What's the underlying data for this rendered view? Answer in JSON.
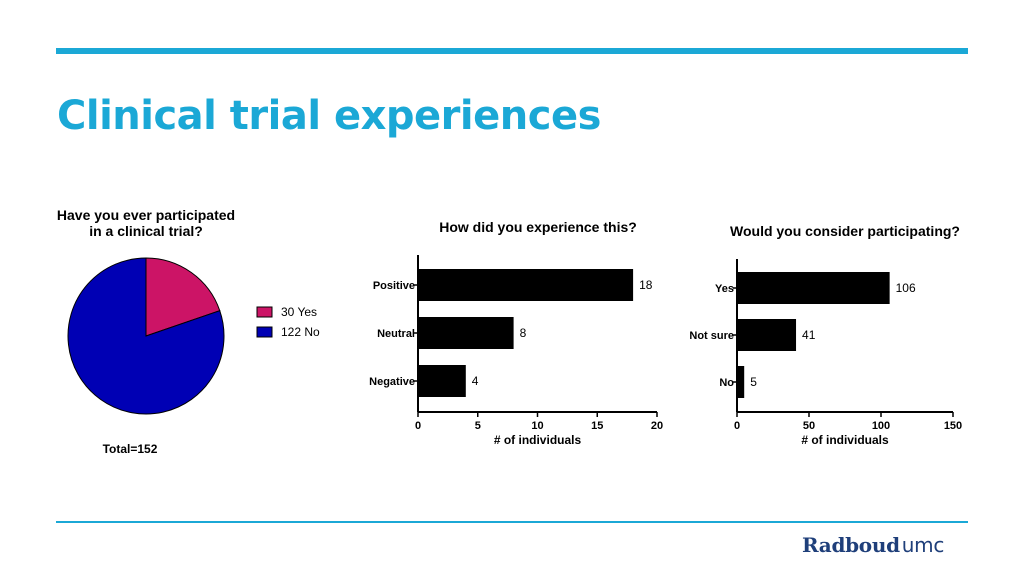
{
  "slide": {
    "title": "Clinical trial experiences",
    "logo_main": "Radboud",
    "logo_suffix": "umc",
    "accent_color": "#1ba8d6",
    "logo_color": "#1f3f7a"
  },
  "chart_data": [
    {
      "type": "pie",
      "title_lines": [
        "Have you ever participated",
        "in a clinical trial?"
      ],
      "slices": [
        {
          "label": "Yes",
          "value": 30,
          "legend": "30 Yes",
          "color": "#cc1466"
        },
        {
          "label": "No",
          "value": 122,
          "legend": "122 No",
          "color": "#0000b4"
        }
      ],
      "total_label": "Total=152",
      "legend_position": "right"
    },
    {
      "type": "bar",
      "orientation": "horizontal",
      "title": "How did you experience this?",
      "categories": [
        "Positive",
        "Neutral",
        "Negative"
      ],
      "values": [
        18,
        8,
        4
      ],
      "xlabel": "# of individuals",
      "xlim": [
        0,
        20
      ],
      "xticks": [
        0,
        5,
        10,
        15,
        20
      ],
      "color": "#000000",
      "grid": false
    },
    {
      "type": "bar",
      "orientation": "horizontal",
      "title": "Would you consider participating?",
      "categories": [
        "Yes",
        "Not sure",
        "No"
      ],
      "values": [
        106,
        41,
        5
      ],
      "xlabel": "# of individuals",
      "xlim": [
        0,
        150
      ],
      "xticks": [
        0,
        50,
        100,
        150
      ],
      "color": "#000000",
      "grid": false
    }
  ]
}
